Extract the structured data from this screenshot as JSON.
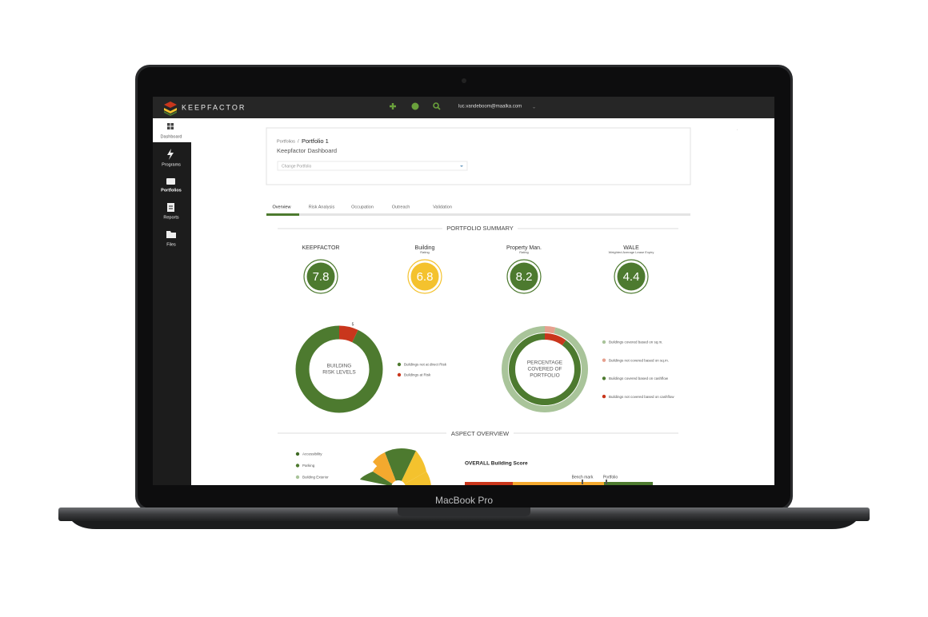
{
  "device_label": "MacBook Pro",
  "topbar": {
    "brand": "KEEPFACTOR",
    "user": "luc.vandeboom@maalka.com"
  },
  "sidebar": {
    "items": [
      "Dashboard",
      "Programs",
      "Portfolios",
      "Reports",
      "Files"
    ]
  },
  "header": {
    "breadcrumb_root": "Portfolios",
    "breadcrumb_sep": "/",
    "breadcrumb_current": "Portfolio 1",
    "title": "Keepfactor Dashboard",
    "select_placeholder": "Change Portfolio"
  },
  "tabs": [
    "Overview",
    "Risk Analysis",
    "Occupation",
    "Outreach",
    "Validation"
  ],
  "portfolio_summary": {
    "title": "PORTFOLIO SUMMARY",
    "kpis": [
      {
        "label": "KEEPFACTOR",
        "value": 7.8,
        "color": "#4d7a2f"
      },
      {
        "label": "Building",
        "sublabel": "Rating",
        "value": 6.8,
        "color": "#f4c22e"
      },
      {
        "label": "Property Man.",
        "sublabel": "Rating",
        "value": 8.2,
        "color": "#4d7a2f"
      },
      {
        "label": "WALE",
        "sublabel": "Weighted Average Lease Expiry",
        "value": 4.4,
        "color": "#4d7a2f"
      }
    ]
  },
  "risk_chart": {
    "type": "donut",
    "label_lines": [
      "BUILDING",
      "RISK LEVELS"
    ],
    "series": [
      {
        "name": "Buildings not at direct Risk",
        "color": "#4d7a2f",
        "value": 65
      },
      {
        "name": "Buildings at Risk",
        "color": "#c9361c",
        "value": 5
      }
    ]
  },
  "coverage_chart": {
    "type": "donut",
    "label_lines": [
      "PERCENTAGE",
      "COVERED OF",
      "PORTFOLIO"
    ],
    "rings": [
      {
        "series": [
          {
            "name": "Buildings covered based on sq.m.",
            "color": "#a9c49a",
            "value": 96
          },
          {
            "name": "Buildings not covered based on sq.m.",
            "color": "#e6a08e",
            "value": 4
          }
        ]
      },
      {
        "series": [
          {
            "name": "Buildings covered based on cashflow",
            "color": "#4d7a2f",
            "value": 90
          },
          {
            "name": "Buildings not covered based on cashflow",
            "color": "#c9361c",
            "value": 10
          }
        ]
      }
    ]
  },
  "aspect_overview": {
    "title": "ASPECT OVERVIEW",
    "legend": [
      {
        "name": "Accessibility",
        "color": "#3e6a24"
      },
      {
        "name": "Parking",
        "color": "#4d7a2f"
      },
      {
        "name": "Building Exterior",
        "color": "#a9c49a"
      }
    ],
    "score_title": "OVERALL Building Score",
    "markers": [
      "Bench mark",
      "Portfolio"
    ]
  }
}
